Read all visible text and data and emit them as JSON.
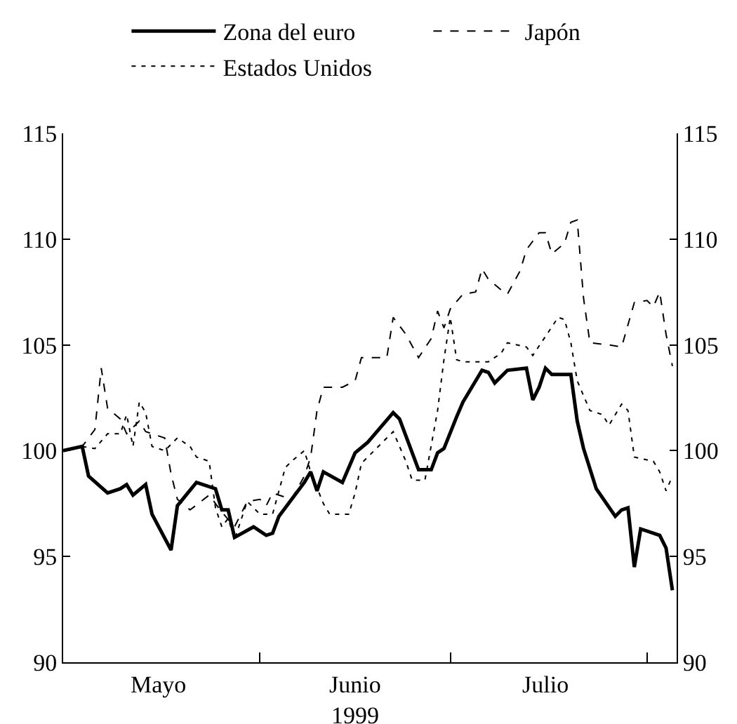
{
  "chart_data": {
    "type": "line",
    "xlabel": null,
    "legend": "top",
    "grid": false,
    "xlim": [
      "1999-05-01",
      "1999-08-05T16:00"
    ],
    "xticks": [
      {
        "value": "1999-05-16",
        "label": "Mayo"
      },
      {
        "value": "1999-06-01",
        "label": null
      },
      {
        "value": "1999-06-16",
        "label": "Junio\n1999"
      },
      {
        "value": "1999-07-01",
        "label": null
      },
      {
        "value": "1999-07-16",
        "label": "Julio"
      },
      {
        "value": "1999-08-01",
        "label": null
      }
    ],
    "ylim": [
      90,
      115
    ],
    "yticks": [
      90,
      95,
      100,
      105,
      110,
      115
    ],
    "y2lim": [
      90,
      115
    ],
    "y2ticks": [
      90,
      95,
      100,
      105,
      110,
      115
    ],
    "series": [
      {
        "name": "Zona del euro",
        "color": "#000000",
        "line_style": "solid",
        "x": [
          "1999-05-01",
          "1999-05-04",
          "1999-05-05",
          "1999-05-08",
          "1999-05-10",
          "1999-05-11",
          "1999-05-12",
          "1999-05-14",
          "1999-05-15",
          "1999-05-18",
          "1999-05-19",
          "1999-05-22",
          "1999-05-25",
          "1999-05-26",
          "1999-05-27",
          "1999-05-28",
          "1999-05-31",
          "1999-06-02",
          "1999-06-03",
          "1999-06-04",
          "1999-06-06",
          "1999-06-08",
          "1999-06-09",
          "1999-06-10",
          "1999-06-11",
          "1999-06-14",
          "1999-06-16",
          "1999-06-18",
          "1999-06-22",
          "1999-06-23",
          "1999-06-25",
          "1999-06-26",
          "1999-06-28",
          "1999-06-29",
          "1999-06-30",
          "1999-07-02",
          "1999-07-03",
          "1999-07-06",
          "1999-07-07",
          "1999-07-08",
          "1999-07-10",
          "1999-07-13",
          "1999-07-14",
          "1999-07-15",
          "1999-07-16",
          "1999-07-17",
          "1999-07-20",
          "1999-07-21",
          "1999-07-22",
          "1999-07-24",
          "1999-07-27",
          "1999-07-28",
          "1999-07-29",
          "1999-07-30",
          "1999-07-31",
          "1999-08-03",
          "1999-08-04",
          "1999-08-05"
        ],
        "values": [
          100,
          100.2,
          98.8,
          98.0,
          98.2,
          98.4,
          97.9,
          98.4,
          97.0,
          95.3,
          97.4,
          98.5,
          98.2,
          97.2,
          97.2,
          95.9,
          96.4,
          96.0,
          96.1,
          96.9,
          97.7,
          98.5,
          99.0,
          98.1,
          99.0,
          98.5,
          99.9,
          100.4,
          101.8,
          101.5,
          99.9,
          99.1,
          99.1,
          99.9,
          100.1,
          101.6,
          102.3,
          103.8,
          103.7,
          103.2,
          103.8,
          103.9,
          102.4,
          103.0,
          103.9,
          103.6,
          103.6,
          101.4,
          100.1,
          98.2,
          96.9,
          97.2,
          97.3,
          94.5,
          96.3,
          96.0,
          95.4,
          93.4
        ]
      },
      {
        "name": "Japón",
        "color": "#000000",
        "line_style": "dashed",
        "x": [
          "1999-05-01",
          "1999-05-04",
          "1999-05-06",
          "1999-05-07",
          "1999-05-08",
          "1999-05-10",
          "1999-05-11",
          "1999-05-13",
          "1999-05-14",
          "1999-05-17",
          "1999-05-18",
          "1999-05-19",
          "1999-05-21",
          "1999-05-24",
          "1999-05-26",
          "1999-05-28",
          "1999-05-30",
          "1999-06-01",
          "1999-06-02",
          "1999-06-03",
          "1999-06-06",
          "1999-06-08",
          "1999-06-09",
          "1999-06-10",
          "1999-06-11",
          "1999-06-14",
          "1999-06-16",
          "1999-06-17",
          "1999-06-21",
          "1999-06-22",
          "1999-06-24",
          "1999-06-26",
          "1999-06-28",
          "1999-06-29",
          "1999-06-30",
          "1999-07-01",
          "1999-07-03",
          "1999-07-05",
          "1999-07-06",
          "1999-07-07",
          "1999-07-09",
          "1999-07-10",
          "1999-07-12",
          "1999-07-13",
          "1999-07-15",
          "1999-07-16",
          "1999-07-17",
          "1999-07-19",
          "1999-07-20",
          "1999-07-21",
          "1999-07-22",
          "1999-07-23",
          "1999-07-26",
          "1999-07-28",
          "1999-07-30",
          "1999-08-01",
          "1999-08-02",
          "1999-08-03",
          "1999-08-04",
          "1999-08-05"
        ],
        "values": [
          100,
          100.2,
          101.0,
          103.9,
          102.0,
          101.5,
          100.8,
          101.4,
          100.9,
          100.6,
          98.9,
          97.7,
          97.2,
          97.9,
          97.1,
          96.4,
          97.6,
          97.7,
          97.4,
          98.0,
          97.7,
          98.8,
          99.7,
          101.9,
          103.0,
          103.0,
          103.3,
          104.4,
          104.4,
          106.3,
          105.5,
          104.4,
          105.3,
          106.6,
          105.8,
          106.7,
          107.4,
          107.5,
          108.6,
          108.1,
          107.6,
          107.4,
          108.5,
          109.5,
          110.3,
          110.3,
          109.3,
          109.8,
          110.8,
          110.9,
          107.2,
          105.1,
          105.0,
          104.9,
          107.0,
          107.1,
          106.8,
          107.5,
          105.5,
          104.0
        ]
      },
      {
        "name": "Estados Unidos",
        "color": "#000000",
        "line_style": "dotted",
        "x": [
          "1999-05-01",
          "1999-05-04",
          "1999-05-06",
          "1999-05-08",
          "1999-05-10",
          "1999-05-11",
          "1999-05-12",
          "1999-05-13",
          "1999-05-14",
          "1999-05-15",
          "1999-05-17",
          "1999-05-19",
          "1999-05-21",
          "1999-05-22",
          "1999-05-24",
          "1999-05-25",
          "1999-05-26",
          "1999-05-27",
          "1999-05-28",
          "1999-05-30",
          "1999-06-01",
          "1999-06-03",
          "1999-06-05",
          "1999-06-06",
          "1999-06-08",
          "1999-06-09",
          "1999-06-11",
          "1999-06-12",
          "1999-06-15",
          "1999-06-16",
          "1999-06-17",
          "1999-06-21",
          "1999-06-22",
          "1999-06-24",
          "1999-06-25",
          "1999-06-27",
          "1999-06-29",
          "1999-06-30",
          "1999-07-01",
          "1999-07-02",
          "1999-07-03",
          "1999-07-07",
          "1999-07-09",
          "1999-07-10",
          "1999-07-13",
          "1999-07-14",
          "1999-07-18",
          "1999-07-19",
          "1999-07-20",
          "1999-07-21",
          "1999-07-23",
          "1999-07-25",
          "1999-07-26",
          "1999-07-28",
          "1999-07-29",
          "1999-07-30",
          "1999-08-02",
          "1999-08-03",
          "1999-08-04",
          "1999-08-05"
        ],
        "values": [
          100,
          100.2,
          100.1,
          100.8,
          100.8,
          101.7,
          100.2,
          102.3,
          101.8,
          100.2,
          100.0,
          100.6,
          100.2,
          99.7,
          99.5,
          97.3,
          96.4,
          96.8,
          95.8,
          97.6,
          97.0,
          97.0,
          99.2,
          99.5,
          100.0,
          99.0,
          97.5,
          97.0,
          97.0,
          98.0,
          99.4,
          100.6,
          100.9,
          99.5,
          98.6,
          98.6,
          101.9,
          104.3,
          106.3,
          104.3,
          104.2,
          104.2,
          104.6,
          105.1,
          104.9,
          104.5,
          106.3,
          106.2,
          105.1,
          103.3,
          101.9,
          101.7,
          101.2,
          102.2,
          101.9,
          99.7,
          99.5,
          99.0,
          98.1,
          98.8
        ]
      }
    ]
  }
}
